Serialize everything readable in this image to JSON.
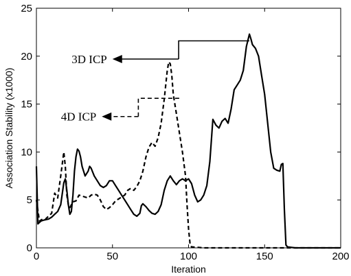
{
  "chart_data": {
    "type": "line",
    "title": "",
    "xlabel": "Iteration",
    "ylabel": "Association Stability (x1000)",
    "xlim": [
      0,
      200
    ],
    "ylim": [
      0,
      25
    ],
    "xticks": [
      0,
      50,
      100,
      150,
      200
    ],
    "yticks": [
      0,
      5,
      10,
      15,
      20,
      25
    ],
    "grid": false,
    "legend": "none",
    "series": [
      {
        "style": "solid",
        "color": "#000000",
        "points": [
          [
            0,
            8.5
          ],
          [
            1,
            2.5
          ],
          [
            3,
            2.8
          ],
          [
            5,
            2.9
          ],
          [
            8,
            3.0
          ],
          [
            10,
            3.2
          ],
          [
            12,
            3.5
          ],
          [
            14,
            3.8
          ],
          [
            16,
            4.5
          ],
          [
            18,
            6.8
          ],
          [
            19,
            7.2
          ],
          [
            20,
            6.0
          ],
          [
            21,
            4.5
          ],
          [
            22,
            3.5
          ],
          [
            23,
            3.8
          ],
          [
            24,
            5.5
          ],
          [
            25,
            8.0
          ],
          [
            26,
            9.5
          ],
          [
            27,
            10.3
          ],
          [
            28,
            10.1
          ],
          [
            29,
            9.5
          ],
          [
            30,
            8.5
          ],
          [
            31,
            8.0
          ],
          [
            32,
            7.5
          ],
          [
            34,
            8.0
          ],
          [
            35,
            8.5
          ],
          [
            36,
            8.3
          ],
          [
            38,
            7.5
          ],
          [
            40,
            7.0
          ],
          [
            42,
            6.5
          ],
          [
            44,
            6.3
          ],
          [
            46,
            6.5
          ],
          [
            48,
            7.0
          ],
          [
            50,
            7.0
          ],
          [
            52,
            6.5
          ],
          [
            54,
            6.0
          ],
          [
            56,
            5.5
          ],
          [
            58,
            5.0
          ],
          [
            60,
            4.5
          ],
          [
            62,
            4.0
          ],
          [
            64,
            3.5
          ],
          [
            66,
            3.3
          ],
          [
            68,
            3.6
          ],
          [
            69,
            4.4
          ],
          [
            70,
            4.6
          ],
          [
            72,
            4.3
          ],
          [
            74,
            3.9
          ],
          [
            76,
            3.6
          ],
          [
            78,
            3.5
          ],
          [
            80,
            3.8
          ],
          [
            82,
            4.5
          ],
          [
            84,
            6.0
          ],
          [
            86,
            7.0
          ],
          [
            88,
            7.5
          ],
          [
            90,
            7.0
          ],
          [
            92,
            6.6
          ],
          [
            94,
            7.0
          ],
          [
            96,
            7.2
          ],
          [
            98,
            7.0
          ],
          [
            100,
            7.2
          ],
          [
            102,
            6.7
          ],
          [
            104,
            5.5
          ],
          [
            106,
            4.8
          ],
          [
            108,
            5.0
          ],
          [
            110,
            5.5
          ],
          [
            112,
            6.5
          ],
          [
            114,
            9.0
          ],
          [
            116,
            13.4
          ],
          [
            118,
            12.8
          ],
          [
            120,
            12.5
          ],
          [
            122,
            13.2
          ],
          [
            124,
            13.5
          ],
          [
            126,
            13.0
          ],
          [
            128,
            14.5
          ],
          [
            130,
            16.5
          ],
          [
            132,
            17.0
          ],
          [
            134,
            17.5
          ],
          [
            136,
            18.5
          ],
          [
            138,
            21.0
          ],
          [
            140,
            22.3
          ],
          [
            141,
            21.8
          ],
          [
            142,
            21.2
          ],
          [
            144,
            20.8
          ],
          [
            146,
            20.0
          ],
          [
            148,
            18.0
          ],
          [
            150,
            16.0
          ],
          [
            152,
            13.0
          ],
          [
            154,
            10.0
          ],
          [
            156,
            8.3
          ],
          [
            158,
            8.1
          ],
          [
            160,
            8.0
          ],
          [
            161,
            8.7
          ],
          [
            162,
            8.8
          ],
          [
            163,
            4.0
          ],
          [
            164,
            0.3
          ],
          [
            165,
            0.1
          ],
          [
            170,
            0.0
          ],
          [
            180,
            0.0
          ],
          [
            190,
            0.0
          ],
          [
            200,
            0.0
          ]
        ]
      },
      {
        "style": "dashed",
        "color": "#000000",
        "points": [
          [
            0,
            5.0
          ],
          [
            2,
            2.8
          ],
          [
            4,
            3.0
          ],
          [
            6,
            3.0
          ],
          [
            8,
            3.3
          ],
          [
            10,
            3.6
          ],
          [
            12,
            5.7
          ],
          [
            14,
            5.2
          ],
          [
            16,
            7.5
          ],
          [
            18,
            10.0
          ],
          [
            19,
            8.5
          ],
          [
            20,
            5.5
          ],
          [
            21,
            4.5
          ],
          [
            22,
            4.2
          ],
          [
            24,
            4.8
          ],
          [
            26,
            4.9
          ],
          [
            28,
            5.5
          ],
          [
            30,
            5.4
          ],
          [
            32,
            5.3
          ],
          [
            34,
            5.2
          ],
          [
            36,
            5.5
          ],
          [
            38,
            5.6
          ],
          [
            40,
            5.5
          ],
          [
            42,
            5.0
          ],
          [
            44,
            4.3
          ],
          [
            46,
            4.0
          ],
          [
            48,
            4.2
          ],
          [
            50,
            4.5
          ],
          [
            52,
            4.9
          ],
          [
            54,
            5.1
          ],
          [
            56,
            5.3
          ],
          [
            58,
            5.5
          ],
          [
            60,
            6.0
          ],
          [
            62,
            6.2
          ],
          [
            64,
            6.0
          ],
          [
            66,
            6.4
          ],
          [
            68,
            7.0
          ],
          [
            70,
            8.0
          ],
          [
            72,
            9.5
          ],
          [
            74,
            10.5
          ],
          [
            76,
            11.0
          ],
          [
            78,
            10.6
          ],
          [
            80,
            11.5
          ],
          [
            82,
            13.0
          ],
          [
            84,
            15.5
          ],
          [
            86,
            18.5
          ],
          [
            87,
            19.4
          ],
          [
            88,
            19.2
          ],
          [
            89,
            18.0
          ],
          [
            90,
            16.0
          ],
          [
            92,
            14.0
          ],
          [
            94,
            12.0
          ],
          [
            96,
            10.0
          ],
          [
            98,
            7.5
          ],
          [
            99,
            4.5
          ],
          [
            100,
            2.0
          ],
          [
            101,
            0.4
          ],
          [
            102,
            0.1
          ],
          [
            110,
            0.0
          ],
          [
            120,
            0.0
          ],
          [
            140,
            0.0
          ],
          [
            160,
            0.0
          ],
          [
            180,
            0.0
          ],
          [
            200,
            0.0
          ]
        ]
      }
    ],
    "annotations": [
      {
        "text": "3D ICP",
        "style": "solid",
        "path": [
          [
            93.5,
            19.7
          ],
          [
            93.5,
            21.6
          ],
          [
            140,
            21.6
          ]
        ],
        "arrow_from": [
          93.5,
          19.7
        ],
        "arrow_to": [
          50,
          19.7
        ]
      },
      {
        "text": "4D ICP",
        "style": "dashed",
        "path": [
          [
            67,
            13.7
          ],
          [
            67,
            15.6
          ],
          [
            94,
            15.6
          ]
        ],
        "arrow_from": [
          67,
          13.7
        ],
        "arrow_to": [
          43,
          13.7
        ]
      }
    ]
  }
}
